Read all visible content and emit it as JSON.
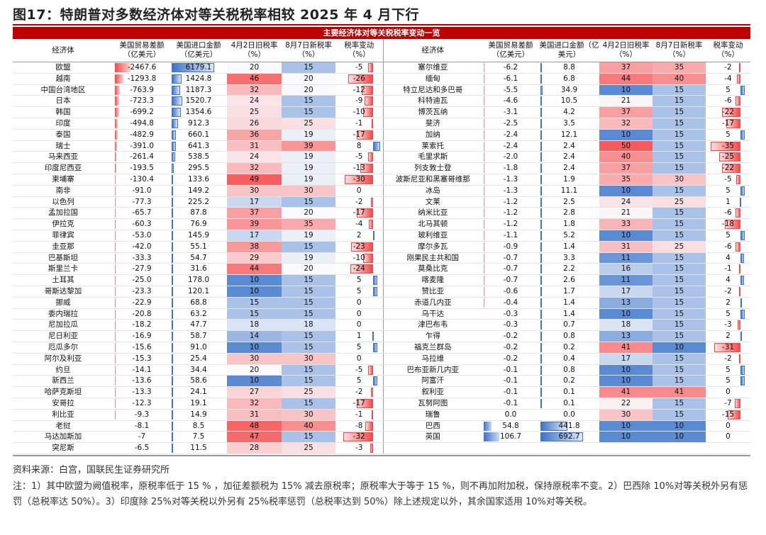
{
  "title": "图17：特朗普对多数经济体对等关税税率相较 2025 年 4 月下行",
  "banner": "主要经济体对等关税税率变动一览",
  "headers": [
    "经济体",
    "美国贸易差额（亿美元）",
    "美国进口金额（亿美元）",
    "4月2日旧税率（%）",
    "8月7日新税率（%）",
    "税率变动（%）"
  ],
  "rows_left": [
    [
      "欧盟",
      -2467.6,
      6179.1,
      20,
      15,
      -5
    ],
    [
      "越南",
      -1293.8,
      1424.8,
      46,
      20,
      -26
    ],
    [
      "中国台湾地区",
      -763.9,
      1187.3,
      32,
      20,
      -12
    ],
    [
      "日本",
      -723.3,
      1520.7,
      24,
      15,
      -9
    ],
    [
      "韩国",
      -699.2,
      1354.6,
      25,
      15,
      -10
    ],
    [
      "印度",
      -494.8,
      912.3,
      26,
      25,
      -1
    ],
    [
      "泰国",
      -482.9,
      660.1,
      36,
      19,
      -17
    ],
    [
      "瑞士",
      {
        "value": -391,
        "label": "-391.0"
      },
      641.3,
      31,
      39,
      8
    ],
    [
      "马来西亚",
      -261.4,
      538.5,
      24,
      19,
      -5
    ],
    [
      "印度尼西亚",
      -193.5,
      295.5,
      32,
      19,
      -13
    ],
    [
      "柬埔寨",
      -130.4,
      133.6,
      49,
      19,
      -30
    ],
    [
      "南非",
      {
        "value": -91,
        "label": "-91.0"
      },
      149.2,
      30,
      30,
      0
    ],
    [
      "以色列",
      -77.3,
      225.2,
      17,
      15,
      -2
    ],
    [
      "孟加拉国",
      -65.7,
      87.8,
      37,
      20,
      -17
    ],
    [
      "伊拉克",
      -60.3,
      76.9,
      39,
      35,
      -4
    ],
    [
      "菲律宾",
      {
        "value": -53,
        "label": "-53.0"
      },
      145.9,
      17,
      19,
      2
    ],
    [
      "圭亚那",
      {
        "value": -42,
        "label": "-42.0"
      },
      55.1,
      38,
      15,
      -23
    ],
    [
      "巴基斯坦",
      -33.3,
      54.7,
      29,
      19,
      -10
    ],
    [
      "斯里兰卡",
      -27.9,
      31.6,
      44,
      20,
      -24
    ],
    [
      "土耳其",
      {
        "value": -25,
        "label": "-25.0"
      },
      {
        "value": 178,
        "label": "178.0"
      },
      10,
      15,
      5
    ],
    [
      "哥斯达黎加",
      -23.3,
      120.1,
      10,
      15,
      5
    ],
    [
      "挪威",
      -22.9,
      68.8,
      15,
      15,
      0
    ],
    [
      "委内瑞拉",
      -20.8,
      63.2,
      15,
      15,
      0
    ],
    [
      "尼加拉瓜",
      -18.2,
      47.7,
      18,
      18,
      0
    ],
    [
      "尼日利亚",
      -16.9,
      58.7,
      14,
      15,
      1
    ],
    [
      "厄瓜多尔",
      -15.6,
      {
        "value": 91,
        "label": "91.0"
      },
      10,
      15,
      5
    ],
    [
      "阿尔及利亚",
      -15.3,
      25.4,
      30,
      30,
      0
    ],
    [
      "约旦",
      -14.1,
      34.4,
      20,
      15,
      -5
    ],
    [
      "新西兰",
      -13.6,
      58.6,
      10,
      15,
      5
    ],
    [
      "哈萨克斯坦",
      -13.3,
      24.1,
      27,
      25,
      -2
    ],
    [
      "安哥拉",
      -12.3,
      19.1,
      32,
      15,
      -17
    ],
    [
      "利比亚",
      -9.3,
      14.9,
      31,
      30,
      -1
    ],
    [
      "老挝",
      -8.1,
      8.5,
      48,
      40,
      -8
    ],
    [
      "马达加斯加",
      -7,
      7.5,
      47,
      15,
      -32
    ],
    [
      "突尼斯",
      -6.5,
      11.5,
      28,
      25,
      -3
    ]
  ],
  "rows_right": [
    [
      "塞尔维亚",
      -6.2,
      8.8,
      37,
      35,
      -2
    ],
    [
      "缅甸",
      -6.1,
      6.8,
      44,
      40,
      -4
    ],
    [
      "特立尼达和多巴哥",
      -5.5,
      34.9,
      10,
      15,
      5
    ],
    [
      "科特迪瓦",
      -4.6,
      10.5,
      21,
      15,
      -6
    ],
    [
      "博茨瓦纳",
      -3.1,
      4.2,
      37,
      15,
      -22
    ],
    [
      "斐济",
      -2.5,
      3.5,
      32,
      15,
      -17
    ],
    [
      "加纳",
      -2.4,
      12.1,
      10,
      15,
      5
    ],
    [
      "莱索托",
      -2.4,
      2.4,
      50,
      15,
      -35
    ],
    [
      "毛里求斯",
      {
        "value": -2,
        "label": "-2.0"
      },
      2.4,
      40,
      15,
      -25
    ],
    [
      "列支敦士登",
      -1.8,
      2.4,
      37,
      15,
      -22
    ],
    [
      "波斯尼亚和黑塞哥维那",
      -1.3,
      1.9,
      35,
      30,
      -5
    ],
    [
      "冰岛",
      -1.3,
      11.1,
      10,
      15,
      5
    ],
    [
      "文莱",
      -1.2,
      2.5,
      24,
      25,
      1
    ],
    [
      "纳米比亚",
      -1.2,
      2.8,
      21,
      15,
      -6
    ],
    [
      "北马其顿",
      -1.2,
      1.8,
      33,
      15,
      -18
    ],
    [
      "玻利维亚",
      -1.1,
      5.2,
      10,
      15,
      5
    ],
    [
      "摩尔多瓦",
      -0.9,
      1.4,
      31,
      25,
      -6
    ],
    [
      "刚果民主共和国",
      -0.7,
      3.3,
      11,
      15,
      4
    ],
    [
      "莫桑比克",
      -0.7,
      2.2,
      16,
      15,
      -1
    ],
    [
      "喀麦隆",
      -0.7,
      2.6,
      11,
      15,
      4
    ],
    [
      "赞比亚",
      -0.6,
      1.7,
      17,
      15,
      -2
    ],
    [
      "赤道几内亚",
      -0.4,
      1.4,
      13,
      15,
      2
    ],
    [
      "乌干达",
      -0.3,
      1.4,
      10,
      15,
      5
    ],
    [
      "津巴布韦",
      -0.3,
      0.7,
      18,
      15,
      -3
    ],
    [
      "乍得",
      -0.2,
      0.8,
      13,
      15,
      2
    ],
    [
      "福克兰群岛",
      -0.2,
      0.2,
      41,
      10,
      -31
    ],
    [
      "马拉维",
      -0.2,
      0.4,
      17,
      15,
      -2
    ],
    [
      "巴布亚新几内亚",
      -0.1,
      0.8,
      10,
      15,
      5
    ],
    [
      "阿富汗",
      -0.1,
      0.2,
      10,
      15,
      5
    ],
    [
      "叙利亚",
      -0.1,
      0.1,
      41,
      41,
      0
    ],
    [
      "瓦努阿图",
      -0.1,
      0.1,
      22,
      15,
      -7
    ],
    [
      "瑞鲁",
      {
        "value": 0,
        "label": "0.0"
      },
      {
        "value": 0,
        "label": "0.0"
      },
      30,
      15,
      -15
    ],
    [
      "巴西",
      54.8,
      441.8,
      10,
      10,
      0
    ],
    [
      "英国",
      106.7,
      692.7,
      10,
      10,
      0
    ]
  ],
  "source": "资料来源：白宫，国联民生证券研究所",
  "note": "注：1）其中欧盟为阙值税率，原税率低于 15 % ，加征差额税为 15% 减去原税率；原税率大于等于 15 %，则不再加附加税，保持原税率不变。2）巴西除 10%对等关税外另有惩罚（总税率达 50%）。3）印度除 25%对等关税以外另有 25%税率惩罚（总税率达到 50%）除上述规定以外，其余国家适用 10%对等关税。"
}
